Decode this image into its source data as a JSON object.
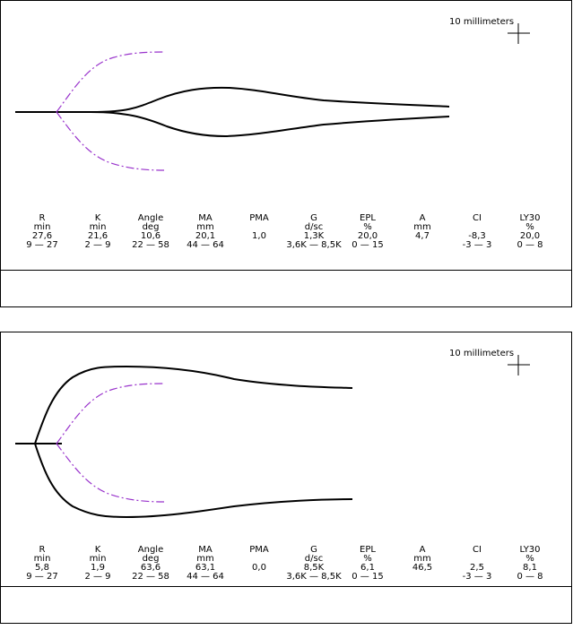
{
  "scale_label": "10 millimeters",
  "colors": {
    "trace": "#000000",
    "reference": "#9933cc",
    "border": "#000000"
  },
  "chart_data": [
    {
      "type": "line",
      "scale_label": "10 millimeters",
      "reference_envelope": "dashed purple normal range",
      "trace": {
        "onset_mm": 10.6,
        "max_amplitude_mm": 20.1,
        "shape": "narrow spindle"
      },
      "parameters": [
        {
          "name": "R",
          "unit": "min",
          "value": "27,6",
          "range": "9 — 27"
        },
        {
          "name": "K",
          "unit": "min",
          "value": "21,6",
          "range": "2 — 9"
        },
        {
          "name": "Angle",
          "unit": "deg",
          "value": "10,6",
          "range": "22 — 58"
        },
        {
          "name": "MA",
          "unit": "mm",
          "value": "20,1",
          "range": "44 — 64"
        },
        {
          "name": "PMA",
          "unit": "",
          "value": "1,0",
          "range": ""
        },
        {
          "name": "G",
          "unit": "d/sc",
          "value": "1,3K",
          "range": "3,6K — 8,5K"
        },
        {
          "name": "EPL",
          "unit": "%",
          "value": "20,0",
          "range": "0 — 15"
        },
        {
          "name": "A",
          "unit": "mm",
          "value": "4,7",
          "range": ""
        },
        {
          "name": "CI",
          "unit": "",
          "value": "-8,3",
          "range": "-3 — 3"
        },
        {
          "name": "LY30",
          "unit": "%",
          "value": "20,0",
          "range": "0 — 8"
        }
      ]
    },
    {
      "type": "line",
      "scale_label": "10 millimeters",
      "reference_envelope": "dashed purple normal range",
      "trace": {
        "onset_mm": 1.9,
        "max_amplitude_mm": 63.1,
        "shape": "wide rapid rise"
      },
      "parameters": [
        {
          "name": "R",
          "unit": "min",
          "value": "5,8",
          "range": "9 — 27"
        },
        {
          "name": "K",
          "unit": "min",
          "value": "1,9",
          "range": "2 — 9"
        },
        {
          "name": "Angle",
          "unit": "deg",
          "value": "63,6",
          "range": "22 — 58"
        },
        {
          "name": "MA",
          "unit": "mm",
          "value": "63,1",
          "range": "44 — 64"
        },
        {
          "name": "PMA",
          "unit": "",
          "value": "0,0",
          "range": ""
        },
        {
          "name": "G",
          "unit": "d/sc",
          "value": "8,5K",
          "range": "3,6K — 8,5K"
        },
        {
          "name": "EPL",
          "unit": "%",
          "value": "6,1",
          "range": "0 — 15"
        },
        {
          "name": "A",
          "unit": "mm",
          "value": "46,5",
          "range": ""
        },
        {
          "name": "CI",
          "unit": "",
          "value": "2,5",
          "range": "-3 — 3"
        },
        {
          "name": "LY30",
          "unit": "%",
          "value": "8,1",
          "range": "0 — 8"
        }
      ]
    }
  ]
}
